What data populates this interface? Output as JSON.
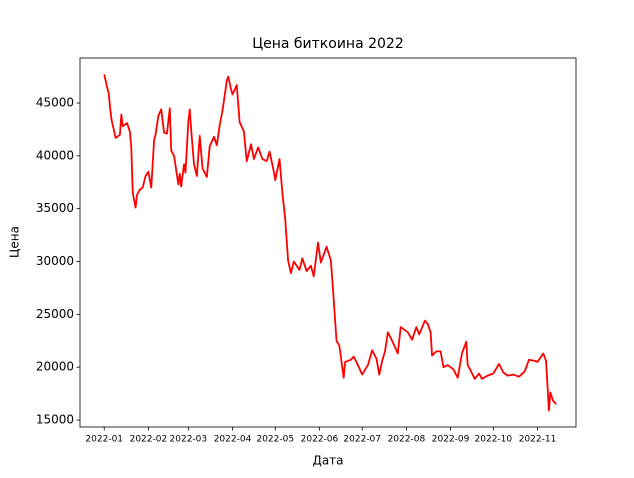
{
  "chart_data": {
    "type": "line",
    "title": "Цена биткоина 2022",
    "x_label": "Дата",
    "y_label": "Цена",
    "x": [
      "2022-01-01",
      "2022-01-03",
      "2022-01-04",
      "2022-01-06",
      "2022-01-09",
      "2022-01-12",
      "2022-01-13",
      "2022-01-14",
      "2022-01-17",
      "2022-01-19",
      "2022-01-20",
      "2022-01-21",
      "2022-01-23",
      "2022-01-24",
      "2022-01-26",
      "2022-01-28",
      "2022-01-30",
      "2022-02-01",
      "2022-02-03",
      "2022-02-05",
      "2022-02-06",
      "2022-02-08",
      "2022-02-10",
      "2022-02-12",
      "2022-02-14",
      "2022-02-16",
      "2022-02-17",
      "2022-02-19",
      "2022-02-22",
      "2022-02-23",
      "2022-02-24",
      "2022-02-26",
      "2022-02-27",
      "2022-03-01",
      "2022-03-02",
      "2022-03-03",
      "2022-03-05",
      "2022-03-07",
      "2022-03-09",
      "2022-03-11",
      "2022-03-14",
      "2022-03-16",
      "2022-03-19",
      "2022-03-21",
      "2022-03-23",
      "2022-03-25",
      "2022-03-28",
      "2022-03-29",
      "2022-03-31",
      "2022-04-01",
      "2022-04-04",
      "2022-04-06",
      "2022-04-09",
      "2022-04-11",
      "2022-04-14",
      "2022-04-16",
      "2022-04-19",
      "2022-04-22",
      "2022-04-25",
      "2022-04-27",
      "2022-04-30",
      "2022-05-01",
      "2022-05-04",
      "2022-05-06",
      "2022-05-08",
      "2022-05-10",
      "2022-05-12",
      "2022-05-14",
      "2022-05-18",
      "2022-05-20",
      "2022-05-23",
      "2022-05-26",
      "2022-05-28",
      "2022-05-31",
      "2022-06-02",
      "2022-06-06",
      "2022-06-09",
      "2022-06-10",
      "2022-06-13",
      "2022-06-15",
      "2022-06-18",
      "2022-06-19",
      "2022-06-23",
      "2022-06-25",
      "2022-06-28",
      "2022-07-01",
      "2022-07-05",
      "2022-07-08",
      "2022-07-11",
      "2022-07-13",
      "2022-07-15",
      "2022-07-17",
      "2022-07-19",
      "2022-07-22",
      "2022-07-26",
      "2022-07-28",
      "2022-08-02",
      "2022-08-05",
      "2022-08-08",
      "2022-08-10",
      "2022-08-14",
      "2022-08-16",
      "2022-08-18",
      "2022-08-19",
      "2022-08-22",
      "2022-08-25",
      "2022-08-27",
      "2022-08-30",
      "2022-09-03",
      "2022-09-06",
      "2022-09-09",
      "2022-09-12",
      "2022-09-13",
      "2022-09-15",
      "2022-09-18",
      "2022-09-21",
      "2022-09-23",
      "2022-09-27",
      "2022-10-01",
      "2022-10-05",
      "2022-10-08",
      "2022-10-11",
      "2022-10-15",
      "2022-10-19",
      "2022-10-23",
      "2022-10-26",
      "2022-10-30",
      "2022-11-01",
      "2022-11-05",
      "2022-11-07",
      "2022-11-09",
      "2022-11-10",
      "2022-11-12",
      "2022-11-14"
    ],
    "series": [
      {
        "name": "Цена",
        "color": "#ff0000",
        "values": [
          47700,
          46500,
          46000,
          43500,
          41700,
          42000,
          43900,
          42800,
          43100,
          42300,
          40700,
          36500,
          35100,
          36300,
          36800,
          37000,
          38100,
          38500,
          37000,
          41500,
          42000,
          43800,
          44400,
          42200,
          42100,
          44500,
          40500,
          40000,
          37300,
          38300,
          37100,
          39200,
          38400,
          43200,
          44400,
          42500,
          39200,
          38100,
          41900,
          38800,
          38000,
          40900,
          41800,
          41000,
          42900,
          44300,
          47100,
          47500,
          46300,
          45800,
          46700,
          43200,
          42300,
          39500,
          41100,
          39700,
          40800,
          39700,
          39500,
          40400,
          38500,
          37700,
          39700,
          36500,
          34000,
          30100,
          28900,
          30000,
          29200,
          30300,
          29100,
          29600,
          28600,
          31800,
          29900,
          31400,
          30100,
          28300,
          22500,
          22000,
          19000,
          20500,
          20700,
          21000,
          20200,
          19300,
          20200,
          21600,
          20800,
          19300,
          20600,
          21500,
          23300,
          22500,
          21300,
          23800,
          23300,
          22600,
          23800,
          23100,
          24400,
          24100,
          23300,
          21100,
          21500,
          21500,
          20000,
          20200,
          19800,
          19000,
          21300,
          22400,
          20200,
          19700,
          18900,
          19400,
          18900,
          19200,
          19400,
          20300,
          19500,
          19200,
          19300,
          19100,
          19600,
          20700,
          20600,
          20500,
          21300,
          20600,
          15900,
          17600,
          16800,
          16500
        ]
      }
    ],
    "xlim": [
      "2021-12-15",
      "2022-11-28"
    ],
    "xticks": [
      {
        "value": "2022-01-01",
        "label": "2022-01"
      },
      {
        "value": "2022-02-01",
        "label": "2022-02"
      },
      {
        "value": "2022-03-01",
        "label": "2022-03"
      },
      {
        "value": "2022-04-01",
        "label": "2022-04"
      },
      {
        "value": "2022-05-01",
        "label": "2022-05"
      },
      {
        "value": "2022-06-01",
        "label": "2022-06"
      },
      {
        "value": "2022-07-01",
        "label": "2022-07"
      },
      {
        "value": "2022-08-01",
        "label": "2022-08"
      },
      {
        "value": "2022-09-01",
        "label": "2022-09"
      },
      {
        "value": "2022-10-01",
        "label": "2022-10"
      },
      {
        "value": "2022-11-01",
        "label": "2022-11"
      }
    ],
    "ylim": [
      14340,
      49260
    ],
    "yticks": [
      15000,
      20000,
      25000,
      30000,
      35000,
      40000,
      45000
    ],
    "grid": false
  }
}
